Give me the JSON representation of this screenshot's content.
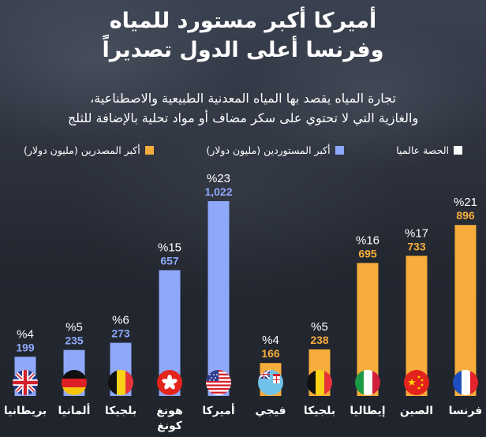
{
  "header": {
    "title_line1": "أميركا أكبر مستورد للمياه",
    "title_line2": "وفرنسا أعلى الدول تصديراً",
    "subtitle_line1": "تجارة المياه يقصد بها المياه المعدنية الطبيعية والاصطناعية،",
    "subtitle_line2": "والغازية التي لا تحتوي على سكر مضاف أو مواد تحلية بالإضافة للثلج"
  },
  "legend": {
    "exporters": "أكبر المصدرين (مليون دولار)",
    "importers": "أكبر المستوردين (مليون دولار)",
    "share": "الحصة عالميا"
  },
  "colors": {
    "exporters": "#f7ad3c",
    "importers": "#8ea8fa",
    "share": "#ffffff",
    "background": "#222630"
  },
  "chart_data": {
    "type": "bar",
    "title": "أميركا أكبر مستورد للمياه وفرنسا أعلى الدول تصديراً",
    "xlabel": "",
    "ylabel": "",
    "unit": "مليون دولار",
    "ylim": [
      0,
      1022
    ],
    "grid": false,
    "legend_position": "top",
    "series": [
      {
        "name": "أكبر المستوردين (مليون دولار)",
        "color": "#8ea8fa",
        "categories": [
          "أميركا",
          "هونغ كونغ",
          "بلجيكا",
          "ألمانيا",
          "بريطانيا"
        ],
        "values": [
          1022,
          657,
          273,
          235,
          199
        ],
        "value_labels": [
          "1,022",
          "657",
          "273",
          "235",
          "199"
        ],
        "share_labels": [
          "%23",
          "%15",
          "%6",
          "%5",
          "%4"
        ],
        "flags": [
          "us-flag",
          "hong-kong-flag",
          "belgium-flag",
          "germany-flag",
          "uk-flag"
        ]
      },
      {
        "name": "أكبر المصدرين (مليون دولار)",
        "color": "#f7ad3c",
        "categories": [
          "فرنسا",
          "الصين",
          "إيطاليا",
          "بلجيكا",
          "فيجي"
        ],
        "values": [
          896,
          733,
          695,
          238,
          166
        ],
        "value_labels": [
          "896",
          "733",
          "695",
          "238",
          "166"
        ],
        "share_labels": [
          "%21",
          "%17",
          "%16",
          "%5",
          "%4"
        ],
        "flags": [
          "france-flag",
          "china-flag",
          "italy-flag",
          "belgium-flag",
          "fiji-flag"
        ]
      }
    ]
  }
}
